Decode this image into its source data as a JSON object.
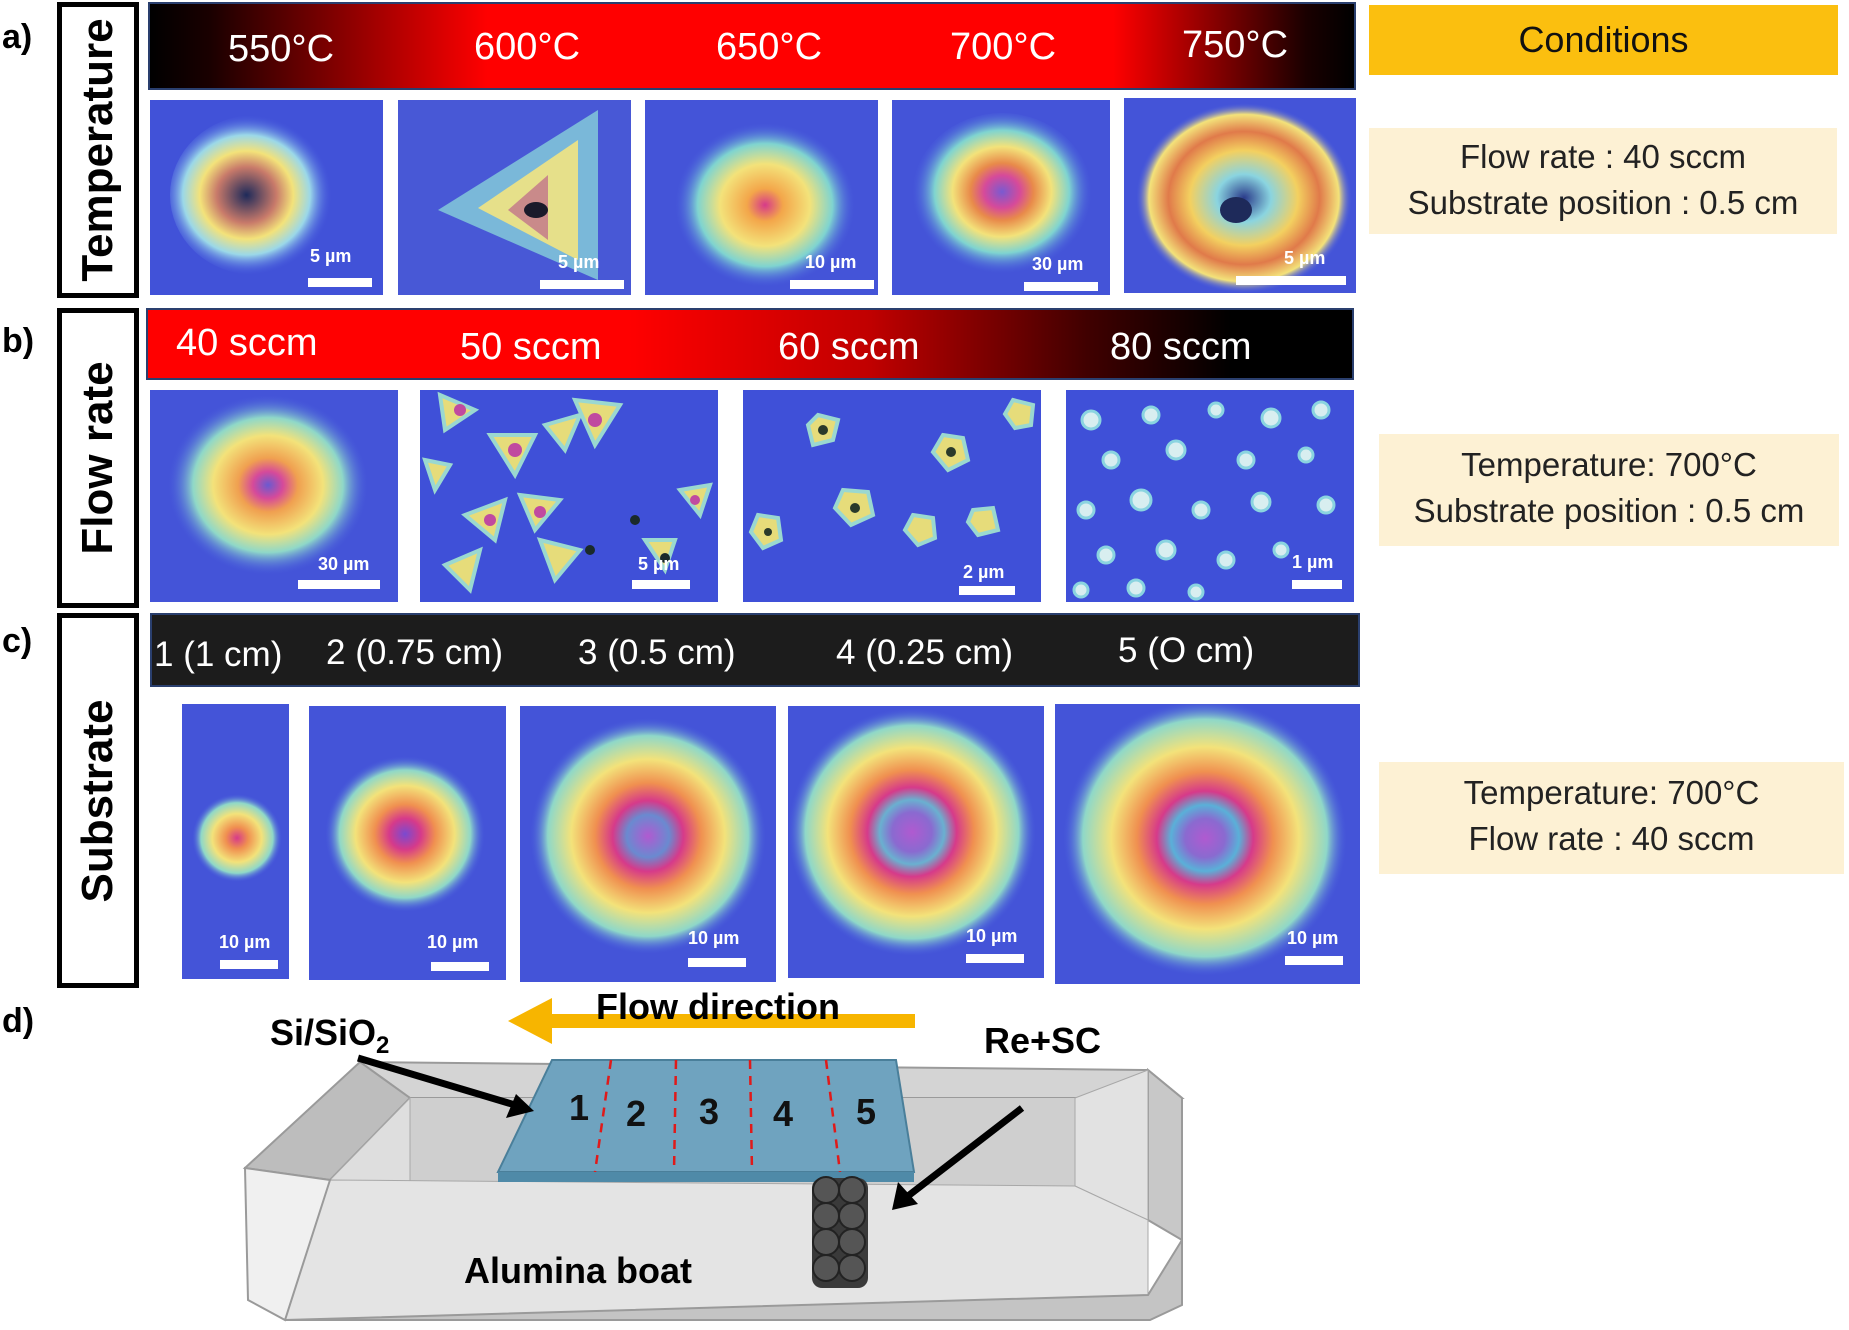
{
  "panels": {
    "a": {
      "letter": "a)",
      "side_label": "Temperature",
      "bar_labels": [
        "550°C",
        "600°C",
        "650°C",
        "700°C",
        "750°C"
      ],
      "scale_labels": [
        "5 µm",
        "5 µm",
        "10 µm",
        "30 µm",
        "5 µm"
      ],
      "conditions": [
        "Flow rate : 40 sccm",
        "Substrate position : 0.5 cm"
      ]
    },
    "b": {
      "letter": "b)",
      "side_label": "Flow rate",
      "bar_labels": [
        "40 sccm",
        "50 sccm",
        "60 sccm",
        "80 sccm"
      ],
      "scale_labels": [
        "30 µm",
        "5 µm",
        "2 µm",
        "1 µm"
      ],
      "conditions": [
        "Temperature: 700°C",
        "Substrate position : 0.5 cm"
      ]
    },
    "c": {
      "letter": "c)",
      "side_label": "Substrate",
      "bar_labels": [
        "1 (1 cm)",
        "2 (0.75 cm)",
        "3 (0.5 cm)",
        "4 (0.25 cm)",
        "5  (O cm)"
      ],
      "scale_labels": [
        "10 µm",
        "10 µm",
        "10 µm",
        "10 µm",
        "10 µm"
      ],
      "conditions": [
        "Temperature: 700°C",
        "Flow rate : 40 sccm"
      ]
    },
    "d": {
      "letter": "d)",
      "flow_direction": "Flow direction",
      "substrate_label_main": "Si/SiO",
      "substrate_label_sub": "2",
      "source_label": "Re+SC",
      "boat_label": "Alumina boat",
      "zones": [
        "1",
        "2",
        "3",
        "4",
        "5"
      ]
    }
  },
  "conditions_header": "Conditions",
  "colors": {
    "substrate_blue": "#3d4fd6",
    "gradient_red": "#ff0a0a",
    "conditions_orange": "#fbbf0f",
    "conditions_bg": "#fdf1d4",
    "flow_arrow": "#f7b500",
    "substrate_plate": "#6fa3bf"
  }
}
